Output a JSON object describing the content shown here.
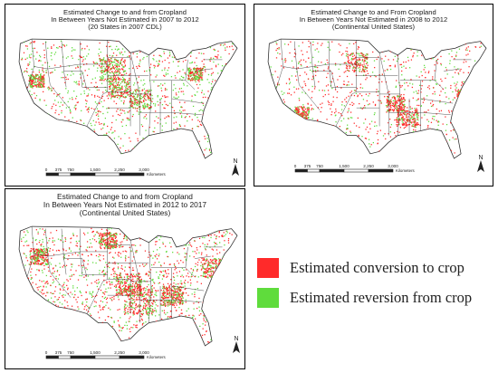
{
  "maps": [
    {
      "title_line1": "Estimated Change to and from Cropland",
      "title_line2": "In Between Years Not Estimated in 2007 to 2012",
      "title_line3": "(20 States in 2007 CDL)",
      "scale_ticks": [
        "0",
        "375",
        "750",
        "1,500",
        "2,250",
        "3,000"
      ],
      "scale_unit": "Kilometers",
      "north_label": "N"
    },
    {
      "title_line1": "Estimated Change to and From Cropland",
      "title_line2": "In Between Years Not Estimated in 2008 to 2012",
      "title_line3": "(Continental United States)",
      "scale_ticks": [
        "0",
        "375",
        "750",
        "1,500",
        "2,250",
        "3,000"
      ],
      "scale_unit": "Kilometers",
      "north_label": "N"
    },
    {
      "title_line1": "Estimated Change to and from Cropland",
      "title_line2": "In Between Years Not Estimated in 2012 to 2017",
      "title_line3": "(Continental United States)",
      "scale_ticks": [
        "0",
        "375",
        "750",
        "1,500",
        "2,250",
        "3,000"
      ],
      "scale_unit": "Kilometers",
      "north_label": "N"
    }
  ],
  "legend": {
    "items": [
      {
        "label": "Estimated conversion to crop",
        "color": "#ff2a2a"
      },
      {
        "label": "Estimated reversion from crop",
        "color": "#5fdc3c"
      }
    ]
  },
  "colors": {
    "conversion": "#ff2a2a",
    "reversion": "#5fdc3c",
    "state_borders": "#2b2b2b",
    "panel_border": "#000000"
  }
}
